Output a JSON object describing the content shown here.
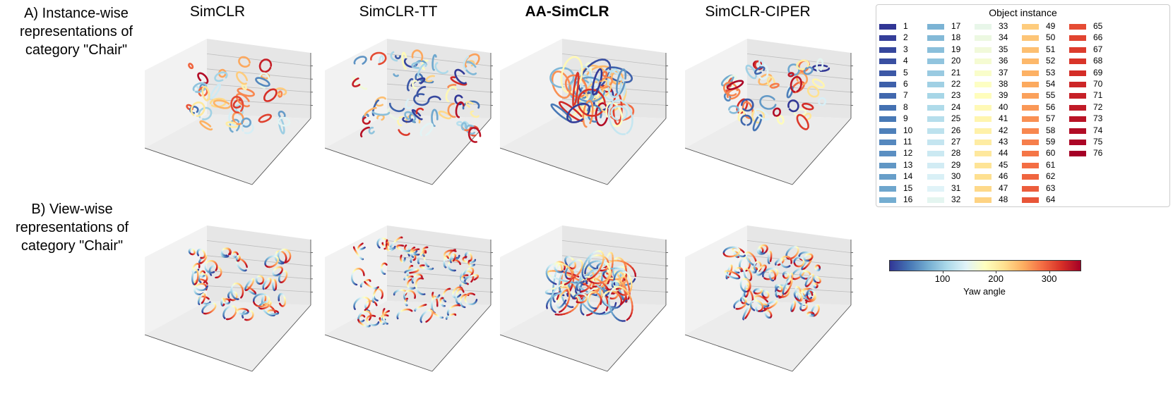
{
  "row_labels": {
    "a": [
      "A) Instance-wise",
      "representations of",
      "category \"Chair\""
    ],
    "b": [
      "B) View-wise",
      "representations of",
      "category \"Chair\""
    ]
  },
  "columns": [
    {
      "title": "SimCLR",
      "bold": false
    },
    {
      "title": "SimCLR-TT",
      "bold": false
    },
    {
      "title": "AA-SimCLR",
      "bold": true
    },
    {
      "title": "SimCLR-CIPER",
      "bold": false
    }
  ],
  "legend": {
    "title": "Object instance",
    "count": 76,
    "items": [
      "1",
      "2",
      "3",
      "4",
      "5",
      "6",
      "7",
      "8",
      "9",
      "10",
      "11",
      "12",
      "13",
      "14",
      "15",
      "16",
      "17",
      "18",
      "19",
      "20",
      "21",
      "22",
      "23",
      "24",
      "25",
      "26",
      "27",
      "28",
      "29",
      "30",
      "31",
      "32",
      "33",
      "34",
      "35",
      "36",
      "37",
      "38",
      "39",
      "40",
      "41",
      "42",
      "43",
      "44",
      "45",
      "46",
      "47",
      "48",
      "49",
      "50",
      "51",
      "52",
      "53",
      "54",
      "55",
      "56",
      "57",
      "58",
      "59",
      "60",
      "61",
      "62",
      "63",
      "64",
      "65",
      "66",
      "67",
      "68",
      "69",
      "70",
      "71",
      "72",
      "73",
      "74",
      "75",
      "76"
    ]
  },
  "colorbar": {
    "label": "Yaw angle",
    "range": [
      0,
      360
    ],
    "ticks": [
      {
        "value": 100,
        "label": "100"
      },
      {
        "value": 200,
        "label": "200"
      },
      {
        "value": 300,
        "label": "300"
      }
    ],
    "colormap": [
      "#313695",
      "#4575b4",
      "#74add1",
      "#abd9e9",
      "#e0f3f8",
      "#ffffbf",
      "#fee090",
      "#fdae61",
      "#f46d43",
      "#d73027",
      "#a50026"
    ]
  },
  "chart_data": {
    "type": "scatter",
    "subtype": "3d-embedding-grid",
    "rows": [
      "A) Instance-wise representations of category \"Chair\"",
      "B) View-wise representations of category \"Chair\""
    ],
    "panels": [
      {
        "row": "A",
        "method": "SimCLR",
        "color_by": "Object instance",
        "pattern": "small rings spread across the volume",
        "clusters": 42,
        "spread": 0.85
      },
      {
        "row": "A",
        "method": "SimCLR-TT",
        "color_by": "Object instance",
        "pattern": "many short arcs, widely dispersed",
        "clusters": 70,
        "spread": 1.0
      },
      {
        "row": "A",
        "method": "AA-SimCLR",
        "color_by": "Object instance",
        "pattern": "long loops entangled in a dense central mass",
        "clusters": 46,
        "spread": 0.55
      },
      {
        "row": "A",
        "method": "SimCLR-CIPER",
        "color_by": "Object instance",
        "pattern": "closed rings, moderately spread",
        "clusters": 48,
        "spread": 0.8
      },
      {
        "row": "B",
        "method": "SimCLR",
        "color_by": "Yaw angle",
        "pattern": "small rings spread across the volume",
        "clusters": 42,
        "spread": 0.85
      },
      {
        "row": "B",
        "method": "SimCLR-TT",
        "color_by": "Yaw angle",
        "pattern": "many short arcs, widely dispersed",
        "clusters": 70,
        "spread": 1.0
      },
      {
        "row": "B",
        "method": "AA-SimCLR",
        "color_by": "Yaw angle",
        "pattern": "long loops entangled in a dense central mass",
        "clusters": 46,
        "spread": 0.55
      },
      {
        "row": "B",
        "method": "SimCLR-CIPER",
        "color_by": "Yaw angle",
        "pattern": "closed rings, moderately spread",
        "clusters": 60,
        "spread": 0.8
      }
    ]
  }
}
